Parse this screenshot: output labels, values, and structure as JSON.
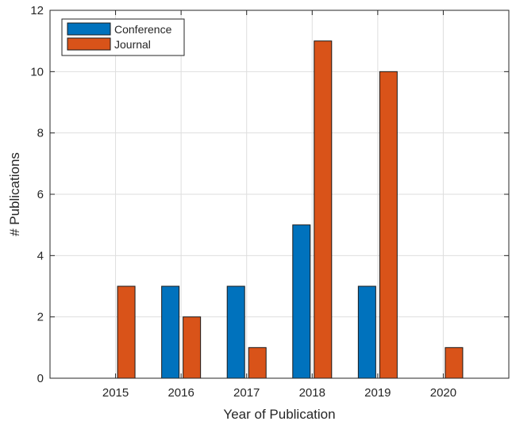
{
  "chart_data": {
    "type": "bar",
    "xlabel": "Year of Publication",
    "ylabel": "# Publications",
    "ylim": [
      0,
      12
    ],
    "yticks": [
      0,
      2,
      4,
      6,
      8,
      10,
      12
    ],
    "categories": [
      "2015",
      "2016",
      "2017",
      "2018",
      "2019",
      "2020"
    ],
    "grid": true,
    "legend_position": "top-left",
    "series": [
      {
        "name": "Conference",
        "color": "#0072BD",
        "values": [
          0,
          3,
          3,
          5,
          3,
          0
        ]
      },
      {
        "name": "Journal",
        "color": "#D95319",
        "values": [
          3,
          2,
          1,
          11,
          10,
          1
        ]
      }
    ]
  }
}
